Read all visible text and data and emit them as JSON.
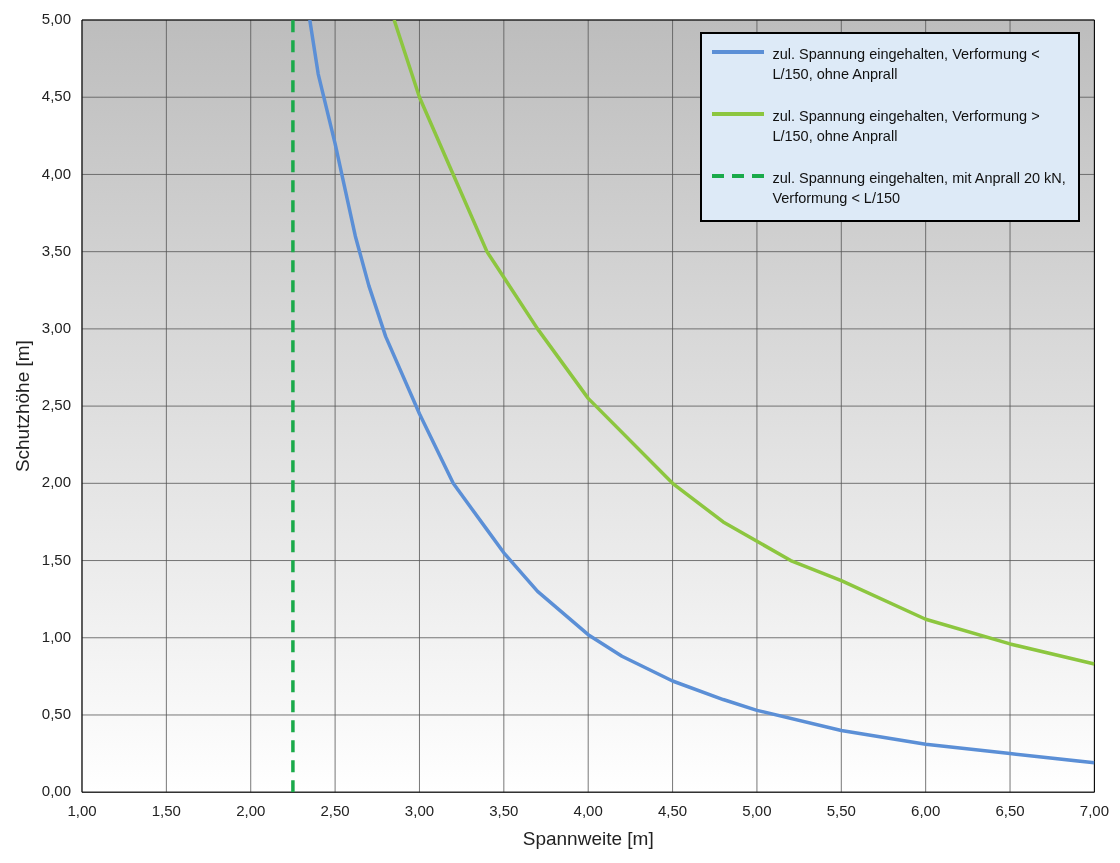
{
  "chart_data": {
    "type": "line",
    "xlabel": "Spannweite [m]",
    "ylabel": "Schutzhöhe [m]",
    "xlim": [
      1,
      7
    ],
    "ylim": [
      0,
      5
    ],
    "xticks": [
      {
        "value": 1,
        "label": "1,00"
      },
      {
        "value": 1.5,
        "label": "1,50"
      },
      {
        "value": 2,
        "label": "2,00"
      },
      {
        "value": 2.5,
        "label": "2,50"
      },
      {
        "value": 3,
        "label": "3,00"
      },
      {
        "value": 3.5,
        "label": "3,50"
      },
      {
        "value": 4,
        "label": "4,00"
      },
      {
        "value": 4.5,
        "label": "4,50"
      },
      {
        "value": 5,
        "label": "5,00"
      },
      {
        "value": 5.5,
        "label": "5,50"
      },
      {
        "value": 6,
        "label": "6,00"
      },
      {
        "value": 6.5,
        "label": "6,50"
      },
      {
        "value": 7,
        "label": "7,00"
      }
    ],
    "yticks": [
      {
        "value": 0,
        "label": "0,00"
      },
      {
        "value": 0.5,
        "label": "0,50"
      },
      {
        "value": 1,
        "label": "1,00"
      },
      {
        "value": 1.5,
        "label": "1,50"
      },
      {
        "value": 2,
        "label": "2,00"
      },
      {
        "value": 2.5,
        "label": "2,50"
      },
      {
        "value": 3,
        "label": "3,00"
      },
      {
        "value": 3.5,
        "label": "3,50"
      },
      {
        "value": 4,
        "label": "4,00"
      },
      {
        "value": 4.5,
        "label": "4,50"
      },
      {
        "value": 5,
        "label": "5,00"
      }
    ],
    "grid": true,
    "legend": "top right",
    "marker": "none",
    "series": [
      {
        "name": "zul. Spannung eingehalten, Verformung < L/150, ohne Anprall",
        "color": "#5b8fd6",
        "line_style": "solid",
        "x": [
          2.35,
          2.4,
          2.5,
          2.62,
          2.7,
          2.8,
          3.0,
          3.2,
          3.4,
          3.5,
          3.7,
          4.0,
          4.2,
          4.5,
          4.8,
          5.0,
          5.5,
          6.0,
          6.5,
          7.0
        ],
        "values": [
          5.0,
          4.65,
          4.2,
          3.6,
          3.28,
          2.95,
          2.45,
          2.0,
          1.7,
          1.55,
          1.3,
          1.02,
          0.88,
          0.72,
          0.6,
          0.53,
          0.4,
          0.31,
          0.25,
          0.19
        ]
      },
      {
        "name": "zul. Spannung eingehalten, Verformung > L/150, ohne Anprall",
        "color": "#8cc63f",
        "line_style": "solid",
        "x": [
          2.85,
          3.0,
          3.2,
          3.4,
          3.7,
          4.0,
          4.5,
          4.8,
          5.2,
          5.5,
          6.0,
          6.5,
          7.0
        ],
        "values": [
          5.0,
          4.5,
          4.0,
          3.5,
          3.0,
          2.55,
          2.0,
          1.75,
          1.5,
          1.37,
          1.12,
          0.96,
          0.83
        ]
      },
      {
        "name": "zul. Spannung eingehalten, mit Anprall 20 kN, Verformung < L/150",
        "color": "#1aaa4a",
        "line_style": "dashed",
        "x": [
          2.25,
          2.25
        ],
        "values": [
          0,
          5
        ]
      }
    ]
  }
}
